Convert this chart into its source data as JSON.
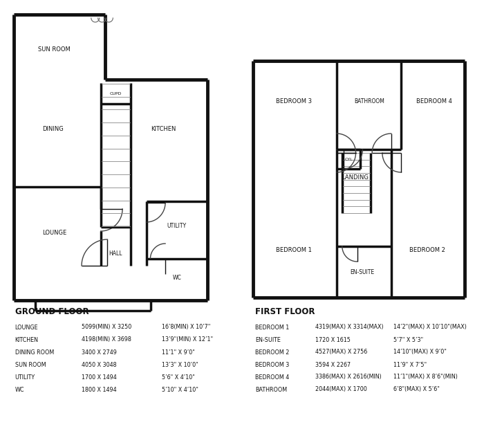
{
  "bg_color": "#ffffff",
  "wall_color": "#111111",
  "wall_lw": 3.5,
  "inner_lw": 2.5,
  "door_lw": 1.0,
  "stair_lw": 0.6,
  "ground_floor_label": "GROUND FLOOR",
  "first_floor_label": "FIRST FLOOR",
  "ground_specs": [
    [
      "LOUNGE",
      "5099(MIN) X 3250",
      "16’8(MIN) X 10’7\""
    ],
    [
      "KITCHEN",
      "4198(MIN) X 3698",
      "13’9\"(MIN) X 12’1\""
    ],
    [
      "DINING ROOM",
      "3400 X 2749",
      "11’1\" X 9’0\""
    ],
    [
      "SUN ROOM",
      "4050 X 3048",
      "13’3\" X 10’0\""
    ],
    [
      "UTILITY",
      "1700 X 1494",
      "5’6\" X 4’10\""
    ],
    [
      "WC",
      "1800 X 1494",
      "5’10\" X 4’10\""
    ]
  ],
  "first_specs": [
    [
      "BEDROOM 1",
      "4319(MAX) X 3314(MAX)",
      "14’2\"(MAX) X 10’10\"(MAX)"
    ],
    [
      "EN-SUITE",
      "1720 X 1615",
      "5’7\" X 5’3\""
    ],
    [
      "BEDROOM 2",
      "4527(MAX) X 2756",
      "14’10\"(MAX) X 9’0\""
    ],
    [
      "BEDROOM 3",
      "3594 X 2267",
      "11’9\" X 7’5\""
    ],
    [
      "BEDROOM 4",
      "3386(MAX) X 2616(MIN)",
      "11’1\"(MAX) X 8’6\"(MIN)"
    ],
    [
      "BATHROOM",
      "2044(MAX) X 1700",
      "6’8\"(MAX) X 5’6\""
    ]
  ]
}
